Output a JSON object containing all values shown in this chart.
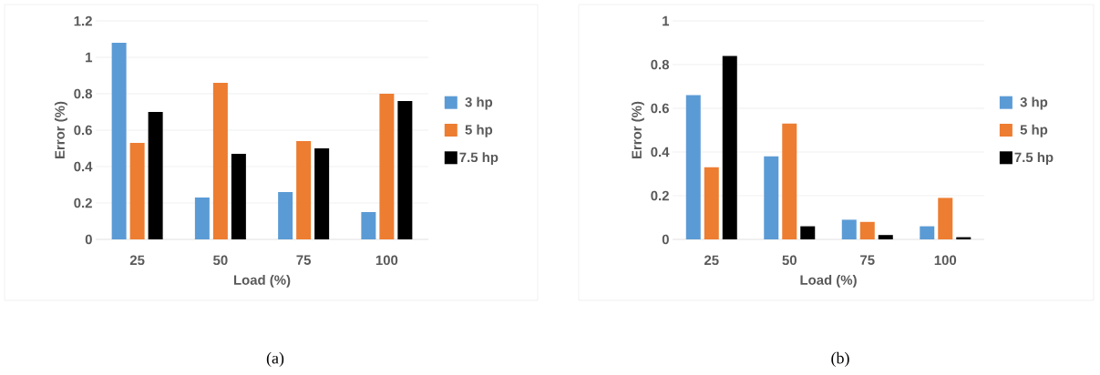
{
  "chart_data": [
    {
      "type": "bar",
      "xlabel": "Load (%)",
      "ylabel": "Error (%)",
      "categories": [
        "25",
        "50",
        "75",
        "100"
      ],
      "series": [
        {
          "name": "3 hp",
          "color": "#5b9bd5",
          "values": [
            1.08,
            0.23,
            0.26,
            0.15
          ]
        },
        {
          "name": "5 hp",
          "color": "#ed7d31",
          "values": [
            0.53,
            0.86,
            0.54,
            0.8
          ]
        },
        {
          "name": "7.5 hp",
          "color": "#000000",
          "values": [
            0.7,
            0.47,
            0.5,
            0.76
          ]
        }
      ],
      "ylim": [
        0,
        1.2
      ],
      "yticks": [
        0,
        0.2,
        0.4,
        0.6,
        0.8,
        1,
        1.2
      ],
      "grid": "y",
      "legend": "right",
      "annotations": [
        "(a)"
      ]
    },
    {
      "type": "bar",
      "xlabel": "Load (%)",
      "ylabel": "Error (%)",
      "categories": [
        "25",
        "50",
        "75",
        "100"
      ],
      "series": [
        {
          "name": "3 hp",
          "color": "#5b9bd5",
          "values": [
            0.66,
            0.38,
            0.09,
            0.06
          ]
        },
        {
          "name": "5 hp",
          "color": "#ed7d31",
          "values": [
            0.33,
            0.53,
            0.08,
            0.19
          ]
        },
        {
          "name": "7.5 hp",
          "color": "#000000",
          "values": [
            0.84,
            0.06,
            0.02,
            0.01
          ]
        }
      ],
      "ylim": [
        0,
        1
      ],
      "yticks": [
        0,
        0.2,
        0.4,
        0.6,
        0.8,
        1
      ],
      "grid": "y",
      "legend": "right",
      "annotations": [
        "(b)"
      ]
    }
  ]
}
